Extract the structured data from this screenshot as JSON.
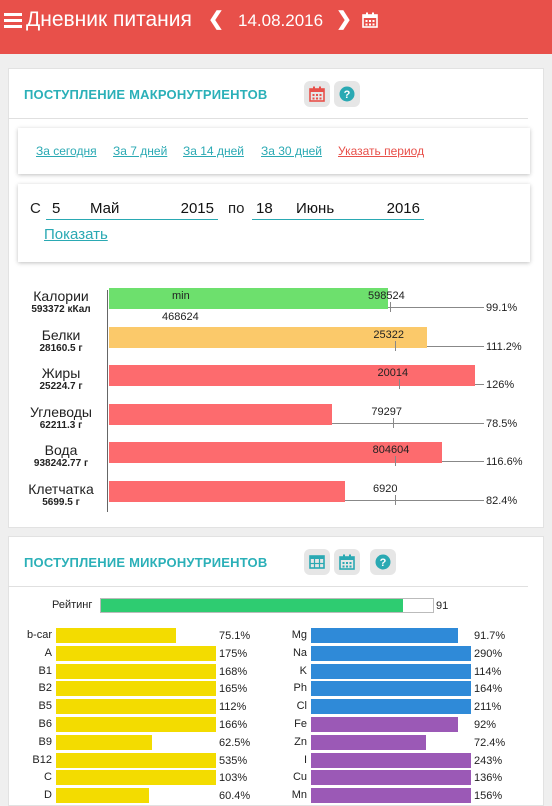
{
  "app": {
    "title": "Дневник питания",
    "date": "14.08.2016"
  },
  "macro": {
    "title": "ПОСТУПЛЕНИЕ МАКРОНУТРИЕНТОВ",
    "periods": [
      "За сегодня",
      "За 7 дней",
      "За 14 дней",
      "За 30 дней"
    ],
    "custom_period": "Указать период",
    "from_label": "С",
    "from": {
      "day": "5",
      "month": "Май",
      "year": "2015"
    },
    "to_label": "по",
    "to": {
      "day": "18",
      "month": "Июнь",
      "year": "2016"
    },
    "show_label": "Показать",
    "min_label": "min",
    "min_value": "468624",
    "rows": [
      {
        "name": "Калории",
        "value": "593372 кКал",
        "norm": "598524",
        "pct_text": "99.1%",
        "fill": 0.761,
        "color": "#6de06d"
      },
      {
        "name": "Белки",
        "value": "28160.5 г",
        "norm": "25322",
        "pct_text": "111.2%",
        "fill": 0.87,
        "color": "#fbc96a"
      },
      {
        "name": "Жиры",
        "value": "25224.7 г",
        "norm": "20014",
        "pct_text": "126%",
        "fill": 1.0,
        "color": "#fd6b6e"
      },
      {
        "name": "Углеводы",
        "value": "62211.3 г",
        "norm": "79297",
        "pct_text": "78.5%",
        "fill": 0.61,
        "color": "#fd6b6e"
      },
      {
        "name": "Вода",
        "value": "938242.77 г",
        "norm": "804604",
        "pct_text": "116.6%",
        "fill": 0.91,
        "color": "#fd6b6e"
      },
      {
        "name": "Клетчатка",
        "value": "5699.5 г",
        "norm": "6920",
        "pct_text": "82.4%",
        "fill": 0.644,
        "color": "#fd6b6e"
      }
    ]
  },
  "micro": {
    "title": "ПОСТУПЛЕНИЕ МИКРОНУТРИЕНТОВ",
    "rating_label": "Рейтинг",
    "rating_value": "91",
    "rating": 0.91,
    "left": [
      {
        "name": "b-car",
        "pct_text": "75.1%",
        "fill": 0.75,
        "color": "#f3dc00"
      },
      {
        "name": "A",
        "pct_text": "175%",
        "fill": 1.0,
        "color": "#f3dc00"
      },
      {
        "name": "B1",
        "pct_text": "168%",
        "fill": 1.0,
        "color": "#f3dc00"
      },
      {
        "name": "B2",
        "pct_text": "165%",
        "fill": 1.0,
        "color": "#f3dc00"
      },
      {
        "name": "B5",
        "pct_text": "112%",
        "fill": 1.0,
        "color": "#f3dc00"
      },
      {
        "name": "B6",
        "pct_text": "166%",
        "fill": 1.0,
        "color": "#f3dc00"
      },
      {
        "name": "B9",
        "pct_text": "62.5%",
        "fill": 0.6,
        "color": "#f3dc00"
      },
      {
        "name": "B12",
        "pct_text": "535%",
        "fill": 1.0,
        "color": "#f3dc00"
      },
      {
        "name": "C",
        "pct_text": "103%",
        "fill": 1.0,
        "color": "#f3dc00"
      },
      {
        "name": "D",
        "pct_text": "60.4%",
        "fill": 0.58,
        "color": "#f3dc00"
      }
    ],
    "right": [
      {
        "name": "Mg",
        "pct_text": "91.7%",
        "fill": 0.92,
        "color": "#2f8ad8"
      },
      {
        "name": "Na",
        "pct_text": "290%",
        "fill": 1.0,
        "color": "#2f8ad8"
      },
      {
        "name": "K",
        "pct_text": "114%",
        "fill": 1.0,
        "color": "#2f8ad8"
      },
      {
        "name": "Ph",
        "pct_text": "164%",
        "fill": 1.0,
        "color": "#2f8ad8"
      },
      {
        "name": "Cl",
        "pct_text": "211%",
        "fill": 1.0,
        "color": "#2f8ad8"
      },
      {
        "name": "Fe",
        "pct_text": "92%",
        "fill": 0.92,
        "color": "#9b59b6"
      },
      {
        "name": "Zn",
        "pct_text": "72.4%",
        "fill": 0.72,
        "color": "#9b59b6"
      },
      {
        "name": "I",
        "pct_text": "243%",
        "fill": 1.0,
        "color": "#9b59b6"
      },
      {
        "name": "Cu",
        "pct_text": "136%",
        "fill": 1.0,
        "color": "#9b59b6"
      },
      {
        "name": "Mn",
        "pct_text": "156%",
        "fill": 1.0,
        "color": "#9b59b6"
      }
    ]
  }
}
